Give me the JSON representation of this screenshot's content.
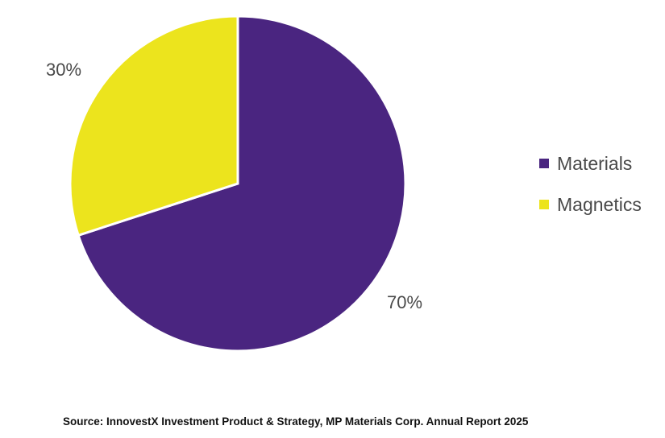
{
  "chart_data": {
    "type": "pie",
    "title": "",
    "slices": [
      {
        "name": "Materials",
        "value": 70,
        "label": "70%",
        "color": "#4a2580"
      },
      {
        "name": "Magnetics",
        "value": 30,
        "label": "30%",
        "color": "#ece41d"
      }
    ],
    "start_angle_deg": 0,
    "direction": "clockwise",
    "legend": {
      "position": "right",
      "entries": [
        "Materials",
        "Magnetics"
      ]
    }
  },
  "source_text": "Source: InnovestX Investment Product & Strategy, MP Materials Corp. Annual Report 2025"
}
